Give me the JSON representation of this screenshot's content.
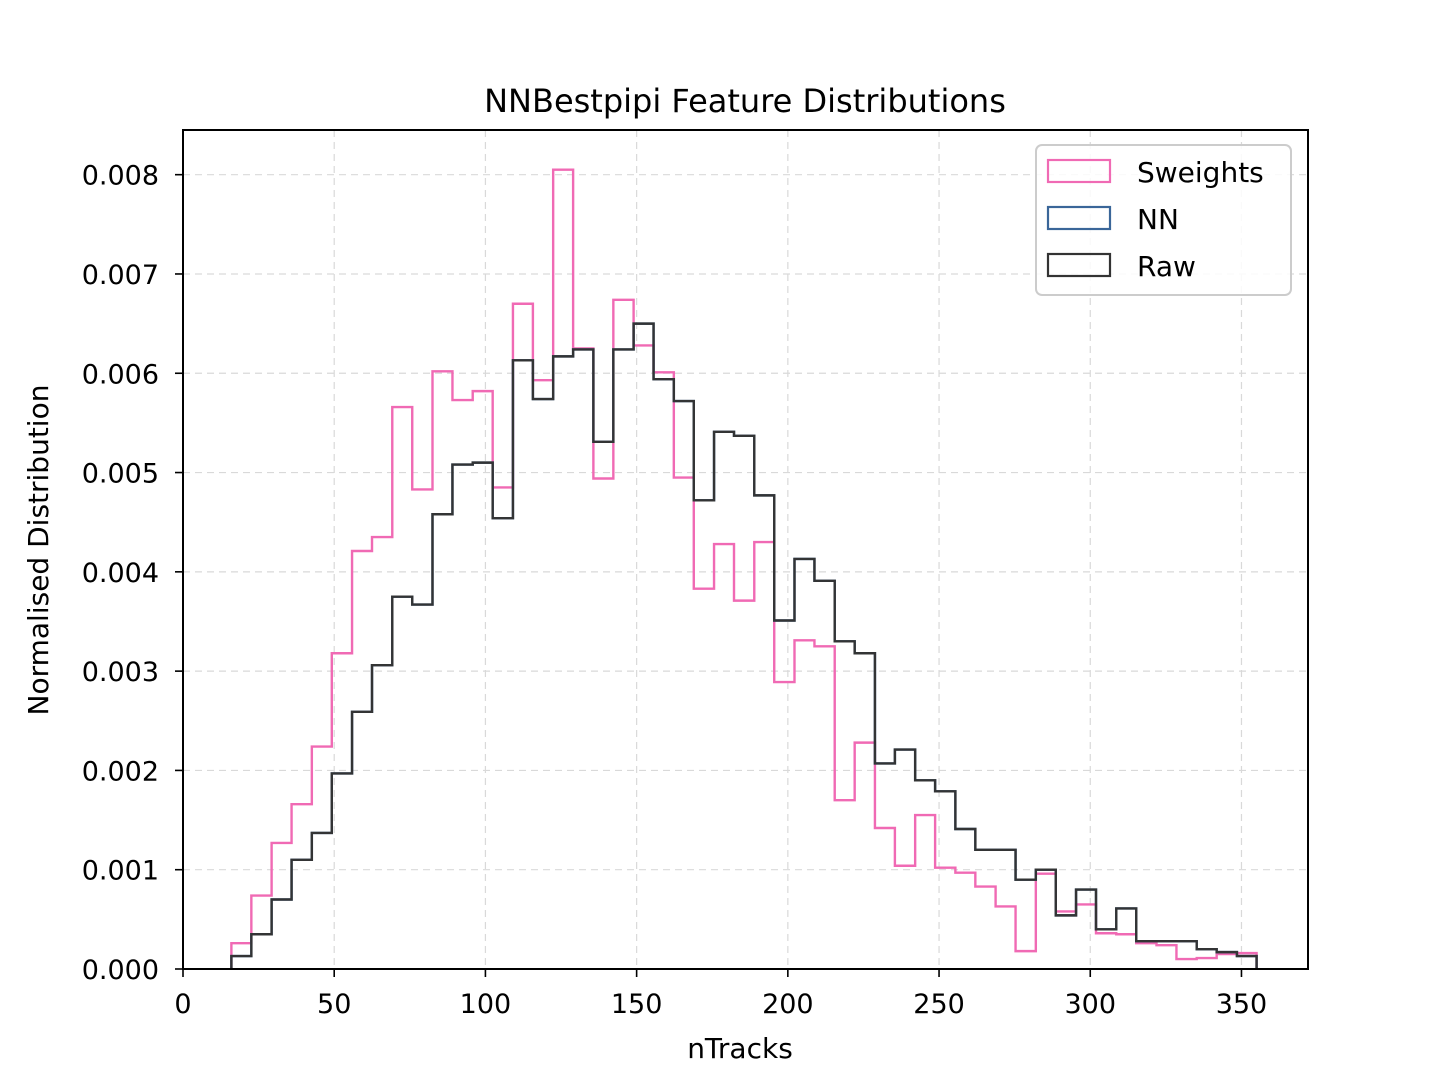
{
  "chart_data": {
    "type": "histogram-step",
    "title": "NNBestpipi Feature Distributions",
    "xlabel": "nTracks",
    "ylabel": "Normalised Distribution",
    "xlim": [
      0,
      372
    ],
    "ylim": [
      0,
      0.00845
    ],
    "xticks": [
      0,
      50,
      100,
      150,
      200,
      250,
      300,
      350
    ],
    "yticks": [
      0.0,
      0.001,
      0.002,
      0.003,
      0.004,
      0.005,
      0.006,
      0.007,
      0.008
    ],
    "xtick_labels": [
      "0",
      "50",
      "100",
      "150",
      "200",
      "250",
      "300",
      "350"
    ],
    "ytick_labels": [
      "0.000",
      "0.001",
      "0.002",
      "0.003",
      "0.004",
      "0.005",
      "0.006",
      "0.007",
      "0.008"
    ],
    "grid": true,
    "legend_position": "top-right",
    "bin_edges": [
      16.0,
      22.6,
      29.3,
      35.9,
      42.6,
      49.2,
      55.9,
      62.5,
      69.2,
      75.8,
      82.5,
      89.1,
      95.8,
      102.4,
      109.1,
      115.7,
      122.4,
      129.0,
      135.7,
      142.3,
      149.0,
      155.6,
      162.3,
      168.9,
      175.6,
      182.2,
      188.9,
      195.5,
      202.2,
      208.8,
      215.5,
      222.1,
      228.8,
      235.4,
      242.1,
      248.7,
      255.4,
      262.0,
      268.7,
      275.3,
      282.0,
      288.6,
      295.3,
      301.9,
      308.6,
      315.2,
      321.9,
      328.5,
      335.2,
      341.8,
      348.5,
      355.0
    ],
    "series": [
      {
        "name": "Sweights",
        "color": "#f06ab4",
        "values": [
          0.00026,
          0.00074,
          0.00127,
          0.00166,
          0.00224,
          0.00318,
          0.00421,
          0.00435,
          0.00566,
          0.00483,
          0.00602,
          0.00573,
          0.00582,
          0.00485,
          0.0067,
          0.00593,
          0.00805,
          0.00625,
          0.00494,
          0.00674,
          0.00628,
          0.00601,
          0.00495,
          0.00383,
          0.00428,
          0.00371,
          0.0043,
          0.00289,
          0.00331,
          0.00325,
          0.0017,
          0.00228,
          0.00142,
          0.00104,
          0.00155,
          0.00102,
          0.00097,
          0.00083,
          0.00063,
          0.00018,
          0.00096,
          0.00058,
          0.00065,
          0.00036,
          0.00035,
          0.00026,
          0.00024,
          0.0001,
          0.00011,
          0.00015,
          0.00016
        ]
      },
      {
        "name": "NN",
        "color": "#3a6699",
        "values": [
          0.00013,
          0.00035,
          0.0007,
          0.0011,
          0.00137,
          0.00197,
          0.00259,
          0.00306,
          0.00375,
          0.00367,
          0.00458,
          0.00508,
          0.0051,
          0.00454,
          0.00613,
          0.00574,
          0.00617,
          0.00624,
          0.00531,
          0.00624,
          0.0065,
          0.00594,
          0.00572,
          0.00472,
          0.00541,
          0.00537,
          0.00477,
          0.00351,
          0.00413,
          0.00391,
          0.0033,
          0.00318,
          0.00207,
          0.00221,
          0.0019,
          0.00179,
          0.00141,
          0.0012,
          0.0012,
          0.0009,
          0.001,
          0.00054,
          0.0008,
          0.0004,
          0.00061,
          0.00028,
          0.00028,
          0.00028,
          0.0002,
          0.00017,
          0.00013
        ]
      },
      {
        "name": "Raw",
        "color": "#333333",
        "values": [
          0.00013,
          0.00035,
          0.0007,
          0.0011,
          0.00137,
          0.00197,
          0.00259,
          0.00306,
          0.00375,
          0.00367,
          0.00458,
          0.00508,
          0.0051,
          0.00454,
          0.00613,
          0.00574,
          0.00617,
          0.00624,
          0.00531,
          0.00624,
          0.0065,
          0.00594,
          0.00572,
          0.00472,
          0.00541,
          0.00537,
          0.00477,
          0.00351,
          0.00413,
          0.00391,
          0.0033,
          0.00318,
          0.00207,
          0.00221,
          0.0019,
          0.00179,
          0.00141,
          0.0012,
          0.0012,
          0.0009,
          0.001,
          0.00054,
          0.0008,
          0.0004,
          0.00061,
          0.00028,
          0.00028,
          0.00028,
          0.0002,
          0.00017,
          0.00013
        ]
      }
    ]
  }
}
